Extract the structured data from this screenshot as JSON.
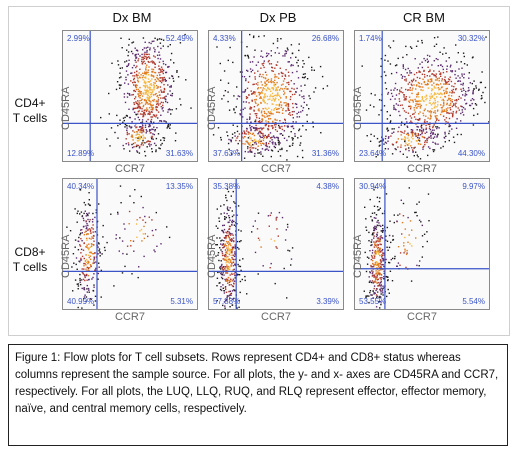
{
  "chart_data": {
    "type": "scatter",
    "columns": [
      "Dx BM",
      "Dx PB",
      "CR BM"
    ],
    "rows": [
      {
        "label_line1": "CD4+",
        "label_line2": "T cells"
      },
      {
        "label_line1": "CD8+",
        "label_line2": "T cells"
      }
    ],
    "xlabel": "CCR7",
    "ylabel": "CD45RA",
    "panels": [
      {
        "row": 0,
        "col": 0,
        "quadrants": {
          "ul": "2.99%",
          "ur": "52.49%",
          "ll": "12.89%",
          "lr": "31.63%"
        }
      },
      {
        "row": 0,
        "col": 1,
        "quadrants": {
          "ul": "4.33%",
          "ur": "26.68%",
          "ll": "37.63%",
          "lr": "31.36%"
        }
      },
      {
        "row": 0,
        "col": 2,
        "quadrants": {
          "ul": "1.74%",
          "ur": "30.32%",
          "ll": "23.64%",
          "lr": "44.30%"
        }
      },
      {
        "row": 1,
        "col": 0,
        "quadrants": {
          "ul": "40.34%",
          "ur": "13.35%",
          "ll": "40.99%",
          "lr": "5.31%"
        }
      },
      {
        "row": 1,
        "col": 1,
        "quadrants": {
          "ul": "35.38%",
          "ur": "4.38%",
          "ll": "57.88%",
          "lr": "3.39%"
        }
      },
      {
        "row": 1,
        "col": 2,
        "quadrants": {
          "ul": "30.94%",
          "ur": "9.97%",
          "ll": "53.55%",
          "lr": "5.54%"
        }
      }
    ],
    "gate_color": "#3b54c8",
    "density_colors": [
      "#1a1a1a",
      "#5a2a6e",
      "#b03a2e",
      "#e07b1f",
      "#f5b942"
    ]
  },
  "caption": "Figure 1: Flow plots for T cell subsets. Rows represent CD4+ and CD8+ status whereas columns represent the sample source. For all plots, the y- and x- axes are CD45RA and CCR7, respectively. For all plots, the LUQ, LLQ, RUQ, and RLQ represent effector, effector memory, naïve, and central memory cells, respectively."
}
